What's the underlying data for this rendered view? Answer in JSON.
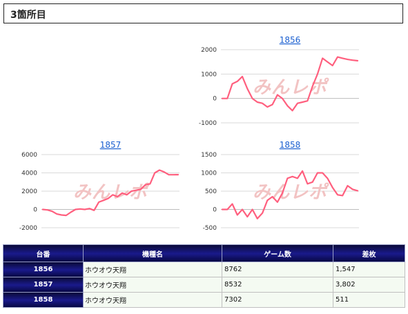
{
  "header": {
    "title": "3箇所目"
  },
  "watermark": "みんレポ",
  "line_color": "#ff5f7e",
  "chart_data": [
    {
      "type": "line",
      "title": "1856",
      "ylim": [
        -1000,
        2000
      ],
      "yticks": [
        -1000,
        0,
        1000,
        2000
      ],
      "y": [
        0,
        0,
        600,
        700,
        900,
        400,
        0,
        -150,
        -200,
        -350,
        -250,
        150,
        0,
        -300,
        -500,
        -200,
        -150,
        -100,
        500,
        1000,
        1650,
        1500,
        1350,
        1700,
        1650,
        1600,
        1570,
        1547
      ],
      "grid": true
    },
    {
      "type": "line",
      "title": "1857",
      "ylim": [
        -2000,
        6000
      ],
      "yticks": [
        -2000,
        0,
        2000,
        4000,
        6000
      ],
      "y": [
        0,
        -50,
        -200,
        -500,
        -600,
        -650,
        -300,
        0,
        50,
        0,
        100,
        -100,
        800,
        1000,
        1200,
        1600,
        1400,
        1800,
        1600,
        2000,
        2100,
        2200,
        2700,
        2800,
        4000,
        4300,
        4100,
        3800,
        3800,
        3802
      ],
      "grid": true
    },
    {
      "type": "line",
      "title": "1858",
      "ylim": [
        -500,
        1500
      ],
      "yticks": [
        -500,
        0,
        500,
        1000,
        1500
      ],
      "y": [
        0,
        0,
        150,
        -150,
        0,
        -200,
        0,
        -250,
        -100,
        250,
        350,
        200,
        450,
        850,
        900,
        850,
        1050,
        700,
        750,
        1000,
        1000,
        850,
        600,
        400,
        380,
        650,
        550,
        511
      ],
      "grid": true
    }
  ],
  "table": {
    "headers": [
      "台番",
      "機種名",
      "ゲーム数",
      "差枚"
    ],
    "rows": [
      {
        "no": "1856",
        "name": "ホウオウ天翔",
        "games": "8762",
        "diff": "1,547"
      },
      {
        "no": "1857",
        "name": "ホウオウ天翔",
        "games": "8532",
        "diff": "3,802"
      },
      {
        "no": "1858",
        "name": "ホウオウ天翔",
        "games": "7302",
        "diff": "511"
      }
    ]
  }
}
